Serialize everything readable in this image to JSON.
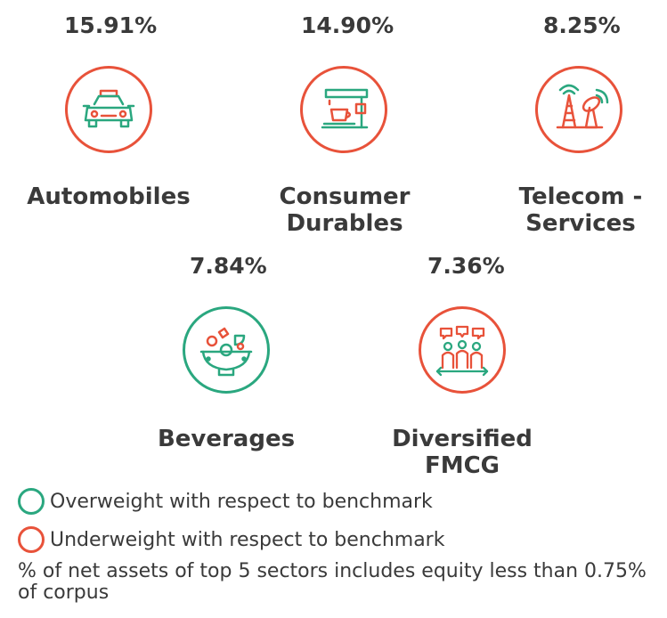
{
  "sectors": [
    {
      "percent": "15.91%",
      "name_line1": "Automobiles",
      "name_line2": "",
      "icon": "car-icon",
      "weight": "underweight"
    },
    {
      "percent": "14.90%",
      "name_line1": "Consumer",
      "name_line2": "Durables",
      "icon": "coffee-machine-icon",
      "weight": "underweight"
    },
    {
      "percent": "8.25%",
      "name_line1": "Telecom -",
      "name_line2": "Services",
      "icon": "telecom-tower-icon",
      "weight": "underweight"
    },
    {
      "percent": "7.84%",
      "name_line1": "Beverages",
      "name_line2": "",
      "icon": "food-bowl-icon",
      "weight": "overweight"
    },
    {
      "percent": "7.36%",
      "name_line1": "Diversified",
      "name_line2": "FMCG",
      "icon": "people-group-icon",
      "weight": "underweight"
    }
  ],
  "legend": {
    "overweight": "Overweight with respect to benchmark",
    "underweight": "Underweight with respect to benchmark"
  },
  "note": "% of net assets of top 5 sectors includes equity less than 0.75% of corpus",
  "colors": {
    "overweight": "#2aa77f",
    "underweight": "#e8523a",
    "text": "#3a3a3a"
  }
}
